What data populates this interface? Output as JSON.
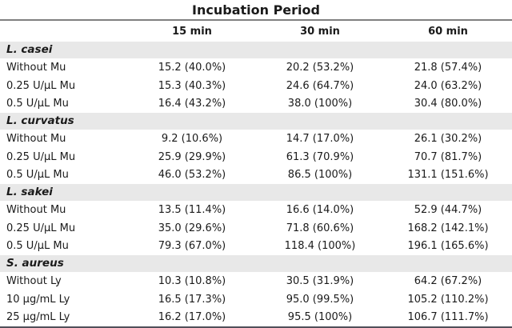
{
  "chart_data": {
    "type": "table",
    "title": "Incubation Period",
    "columns": [
      "15 min",
      "30 min",
      "60 min"
    ],
    "sections": [
      {
        "name": "L. casei",
        "rows": [
          {
            "label": "Without Mu",
            "values": [
              "15.2 (40.0%)",
              "20.2 (53.2%)",
              "21.8 (57.4%)"
            ]
          },
          {
            "label": "0.25 U/μL Mu",
            "values": [
              "15.3 (40.3%)",
              "24.6 (64.7%)",
              "24.0 (63.2%)"
            ]
          },
          {
            "label": "0.5 U/μL Mu",
            "values": [
              "16.4 (43.2%)",
              "38.0 (100%)",
              "30.4 (80.0%)"
            ]
          }
        ]
      },
      {
        "name": "L. curvatus",
        "rows": [
          {
            "label": "Without Mu",
            "values": [
              "9.2 (10.6%)",
              "14.7 (17.0%)",
              "26.1 (30.2%)"
            ]
          },
          {
            "label": "0.25 U/μL Mu",
            "values": [
              "25.9 (29.9%)",
              "61.3 (70.9%)",
              "70.7 (81.7%)"
            ]
          },
          {
            "label": "0.5 U/μL Mu",
            "values": [
              "46.0 (53.2%)",
              "86.5 (100%)",
              "131.1 (151.6%)"
            ]
          }
        ]
      },
      {
        "name": "L. sakei",
        "rows": [
          {
            "label": "Without Mu",
            "values": [
              "13.5 (11.4%)",
              "16.6 (14.0%)",
              "52.9 (44.7%)"
            ]
          },
          {
            "label": "0.25 U/μL Mu",
            "values": [
              "35.0 (29.6%)",
              "71.8 (60.6%)",
              "168.2 (142.1%)"
            ]
          },
          {
            "label": "0.5 U/μL Mu",
            "values": [
              "79.3 (67.0%)",
              "118.4 (100%)",
              "196.1 (165.6%)"
            ]
          }
        ]
      },
      {
        "name": "S. aureus",
        "rows": [
          {
            "label": "Without Ly",
            "values": [
              "10.3 (10.8%)",
              "30.5 (31.9%)",
              "64.2 (67.2%)"
            ]
          },
          {
            "label": "10 μg/mL Ly",
            "values": [
              "16.5 (17.3%)",
              "95.0 (99.5%)",
              "105.2 (110.2%)"
            ]
          },
          {
            "label": "25 μg/mL Ly",
            "values": [
              "16.2 (17.0%)",
              "95.5 (100%)",
              "106.7 (111.7%)"
            ]
          }
        ]
      }
    ]
  },
  "colors": {
    "section_band_bg": "#e8e8e8",
    "header_rule": "#808080",
    "bottom_rule": "#50505a",
    "text": "#1a1a1a"
  }
}
